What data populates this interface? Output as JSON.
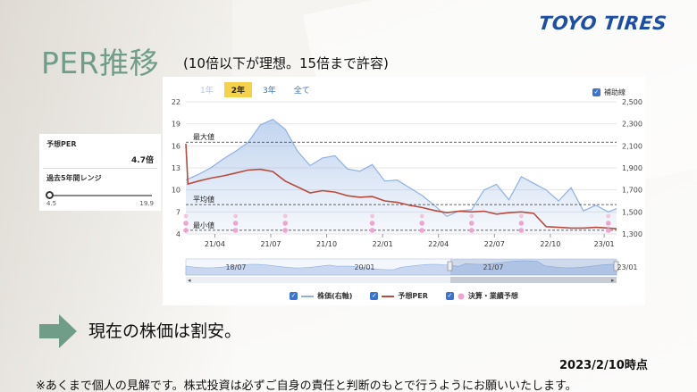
{
  "brand": "TOYO TIRES",
  "title": "PER推移",
  "subtitle": "(10倍以下が理想。15倍まで許容)",
  "side_panel": {
    "forecast_per_label": "予想PER",
    "forecast_per_value": "4.7倍",
    "range_label": "過去5年間レンジ",
    "range_min": "4.5",
    "range_max": "19.9",
    "range_position": 0.01
  },
  "chart_ui": {
    "tabs": [
      {
        "label": "1年",
        "state": "dim"
      },
      {
        "label": "2年",
        "state": "active"
      },
      {
        "label": "3年",
        "state": "normal"
      },
      {
        "label": "全て",
        "state": "normal"
      }
    ],
    "aux_lines_label": "補助線",
    "legend": [
      {
        "label": "株価(右軸)",
        "color": "#8fb1e2"
      },
      {
        "label": "予想PER",
        "color": "#b94a3c"
      },
      {
        "label": "決算・業績予想",
        "color": "#f0a3cf"
      }
    ],
    "navigator_labels": [
      "18/07",
      "20/01",
      "21/07",
      "23/01"
    ]
  },
  "chart_data": {
    "type": "line",
    "x_ticks": [
      "21/04",
      "21/07",
      "21/10",
      "22/01",
      "22/04",
      "22/07",
      "22/10",
      "23/01"
    ],
    "y_left_ticks": [
      4,
      7,
      10,
      13,
      16,
      19,
      22
    ],
    "y_right_ticks": [
      "1,300",
      "1,500",
      "1,700",
      "1,900",
      "2,100",
      "2,300",
      "2,500"
    ],
    "y_left_range": [
      4,
      22
    ],
    "y_right_range": [
      1300,
      2500
    ],
    "reference_lines": [
      {
        "label": "最大値",
        "value": 16.5
      },
      {
        "label": "平均値",
        "value": 8.0
      },
      {
        "label": "最小値",
        "value": 4.5
      }
    ],
    "series": [
      {
        "name": "株価(右軸)",
        "axis": "right",
        "color": "#8fb1e2",
        "x": [
          0,
          3,
          6,
          9,
          12,
          15,
          18,
          21,
          24,
          27,
          30,
          33,
          36,
          39,
          42,
          45,
          48,
          51,
          54,
          57,
          60,
          63,
          66,
          69,
          72,
          75,
          78,
          81,
          84,
          87,
          90,
          93,
          96,
          99,
          102,
          104
        ],
        "values": [
          1790,
          1840,
          1900,
          1980,
          2050,
          2130,
          2290,
          2340,
          2250,
          2050,
          1920,
          1990,
          2010,
          1890,
          1870,
          1930,
          1780,
          1790,
          1720,
          1650,
          1560,
          1460,
          1510,
          1520,
          1700,
          1750,
          1610,
          1820,
          1760,
          1700,
          1600,
          1720,
          1510,
          1560,
          1500,
          1530
        ]
      },
      {
        "name": "予想PER",
        "axis": "left",
        "color": "#b94a3c",
        "x": [
          0,
          0.5,
          3,
          6,
          9,
          12,
          15,
          18,
          21,
          24,
          27,
          30,
          33,
          36,
          39,
          42,
          45,
          48,
          51,
          54,
          57,
          60,
          63,
          66,
          69,
          72,
          75,
          78,
          81,
          84,
          87,
          90,
          93,
          96,
          99,
          102,
          104
        ],
        "values": [
          16.3,
          10.8,
          11.2,
          11.6,
          11.9,
          12.3,
          12.7,
          12.8,
          12.5,
          11.2,
          10.4,
          9.6,
          9.9,
          9.7,
          9.2,
          9.0,
          9.1,
          8.5,
          8.3,
          7.9,
          7.6,
          7.2,
          6.9,
          7.1,
          7.0,
          7.1,
          6.7,
          6.9,
          7.0,
          6.8,
          5.0,
          4.9,
          4.8,
          4.8,
          4.9,
          4.8,
          4.7
        ]
      }
    ],
    "events_x": [
      0,
      12,
      24,
      45,
      57,
      69,
      81,
      102
    ]
  },
  "conclusion": "現在の株価は割安。",
  "timestamp": "2023/2/10時点",
  "disclaimer": "※あくまで個人の見解です。株式投資は必ずご自身の責任と判断のもとで行うようにお願いいたします。"
}
